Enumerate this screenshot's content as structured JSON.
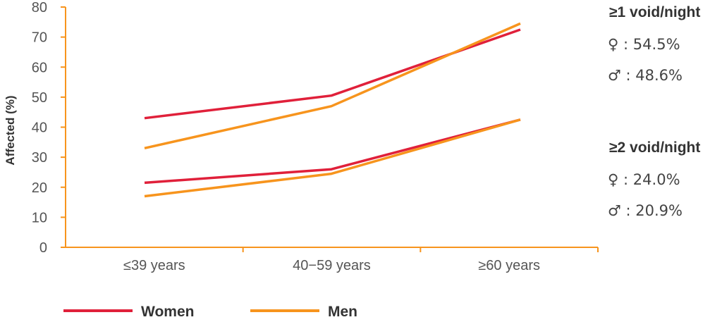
{
  "chart_data": {
    "type": "line",
    "title": "",
    "xlabel": "",
    "ylabel": "Affected (%)",
    "categories": [
      "≤39 years",
      "40−59 years",
      "≥60 years"
    ],
    "ylim": [
      0,
      80
    ],
    "yticks": [
      0,
      10,
      20,
      30,
      40,
      50,
      60,
      70,
      80
    ],
    "grid": false,
    "legend_position": "bottom",
    "legend": [
      "Women",
      "Men"
    ],
    "series": [
      {
        "group": "≥1 void/night",
        "name": "Women",
        "color": "#e0203a",
        "values": [
          43,
          50.5,
          72.5
        ]
      },
      {
        "group": "≥1 void/night",
        "name": "Men",
        "color": "#f7941d",
        "values": [
          33,
          47,
          74.5
        ]
      },
      {
        "group": "≥2 void/night",
        "name": "Women",
        "color": "#e0203a",
        "values": [
          21.5,
          26,
          42.5
        ]
      },
      {
        "group": "≥2 void/night",
        "name": "Men",
        "color": "#f7941d",
        "values": [
          17,
          24.5,
          42.5
        ]
      }
    ],
    "annotations": [
      {
        "heading": "≥1 void/night",
        "lines": [
          "♀ : 54.5%",
          "♂ : 48.6%"
        ]
      },
      {
        "heading": "≥2 void/night",
        "lines": [
          "♀ : 24.0%",
          "♂ : 20.9%"
        ]
      }
    ]
  },
  "colors": {
    "axis": "#f7941d",
    "women": "#e0203a",
    "men": "#f7941d"
  }
}
